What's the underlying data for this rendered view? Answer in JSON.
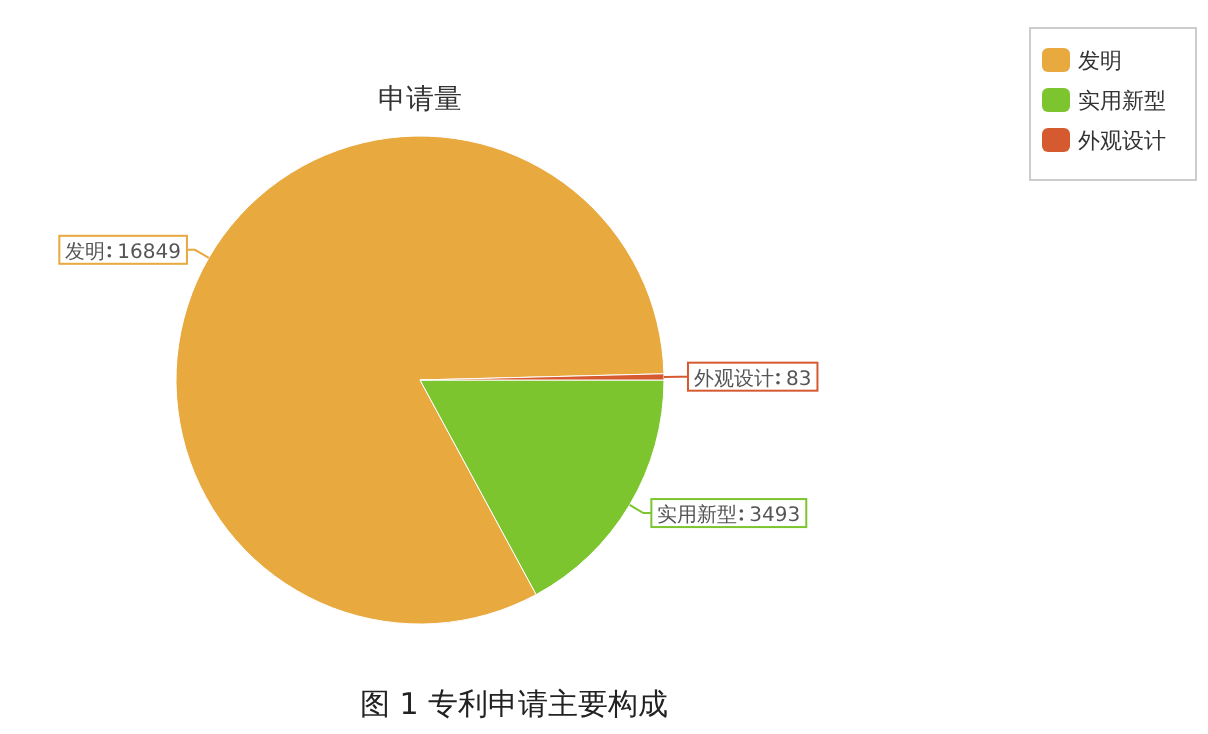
{
  "chart_data": {
    "type": "pie",
    "title": "申请量",
    "categories": [
      "发明",
      "实用新型",
      "外观设计"
    ],
    "values": [
      16849,
      3493,
      83
    ],
    "colors": [
      "#e8a93f",
      "#7cc52e",
      "#d65a2f"
    ],
    "data_labels": true,
    "legend": "top right",
    "annotations": [
      "图 1 专利申请主要构成"
    ]
  }
}
